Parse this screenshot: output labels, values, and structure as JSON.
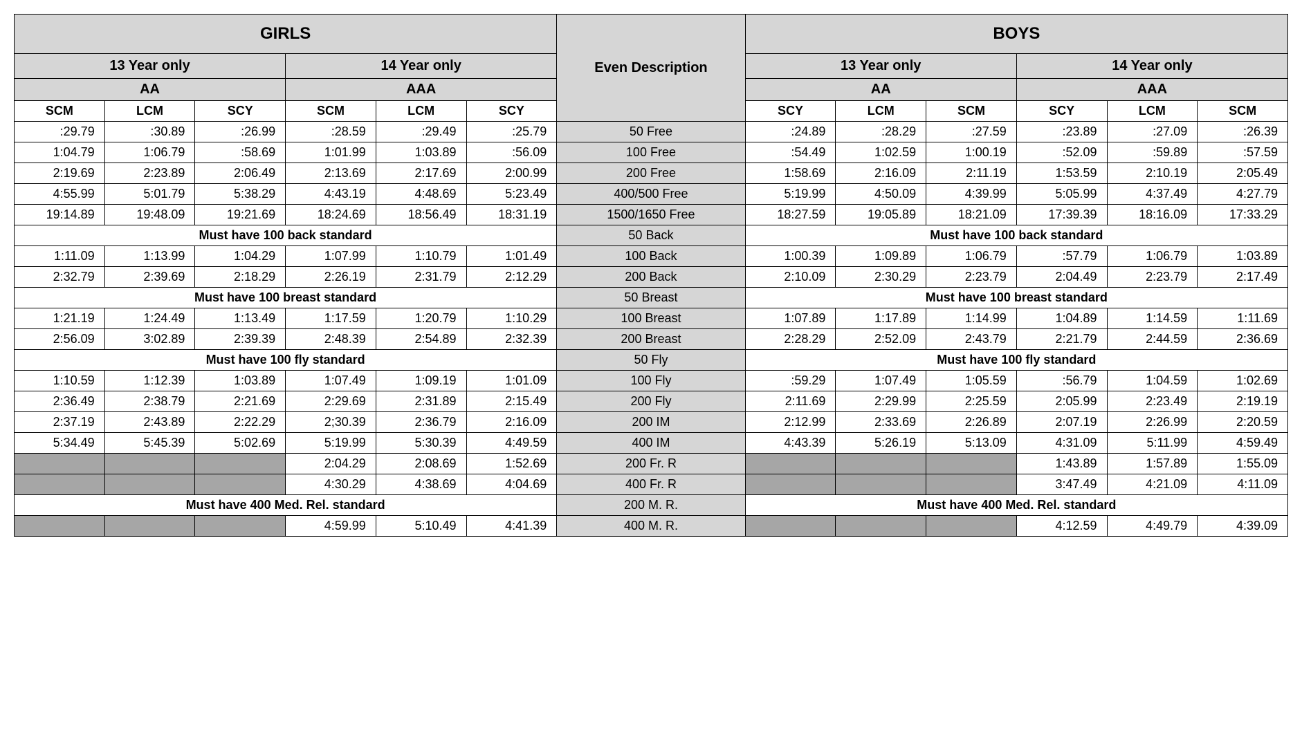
{
  "headers": {
    "girls": "GIRLS",
    "boys": "BOYS",
    "eventDesc": "Even Description",
    "y13": "13 Year only",
    "y14": "14 Year only",
    "aa": "AA",
    "aaa": "AAA",
    "scm": "SCM",
    "lcm": "LCM",
    "scy": "SCY"
  },
  "notes": {
    "back100": "Must have 100 back standard",
    "breast100": "Must have 100 breast standard",
    "fly100": "Must have 100 fly standard",
    "medrel400": "Must have 400 Med. Rel. standard"
  },
  "events": {
    "e50free": "50 Free",
    "e100free": "100 Free",
    "e200free": "200 Free",
    "e400free": "400/500 Free",
    "e1500free": "1500/1650 Free",
    "e50back": "50 Back",
    "e100back": "100 Back",
    "e200back": "200 Back",
    "e50breast": "50 Breast",
    "e100breast": "100 Breast",
    "e200breast": "200 Breast",
    "e50fly": "50 Fly",
    "e100fly": "100 Fly",
    "e200fly": "200 Fly",
    "e200im": "200 IM",
    "e400im": "400 IM",
    "e200frr": "200 Fr. R",
    "e400frr": "400 Fr. R",
    "e200mr": "200 M. R.",
    "e400mr": "400 M. R."
  },
  "rows": {
    "r50free": {
      "g": [
        ":29.79",
        ":30.89",
        ":26.99",
        ":28.59",
        ":29.49",
        ":25.79"
      ],
      "b": [
        ":24.89",
        ":28.29",
        ":27.59",
        ":23.89",
        ":27.09",
        ":26.39"
      ]
    },
    "r100free": {
      "g": [
        "1:04.79",
        "1:06.79",
        ":58.69",
        "1:01.99",
        "1:03.89",
        ":56.09"
      ],
      "b": [
        ":54.49",
        "1:02.59",
        "1:00.19",
        ":52.09",
        ":59.89",
        ":57.59"
      ]
    },
    "r200free": {
      "g": [
        "2:19.69",
        "2:23.89",
        "2:06.49",
        "2:13.69",
        "2:17.69",
        "2:00.99"
      ],
      "b": [
        "1:58.69",
        "2:16.09",
        "2:11.19",
        "1:53.59",
        "2:10.19",
        "2:05.49"
      ]
    },
    "r400free": {
      "g": [
        "4:55.99",
        "5:01.79",
        "5:38.29",
        "4:43.19",
        "4:48.69",
        "5:23.49"
      ],
      "b": [
        "5:19.99",
        "4:50.09",
        "4:39.99",
        "5:05.99",
        "4:37.49",
        "4:27.79"
      ]
    },
    "r1500free": {
      "g": [
        "19:14.89",
        "19:48.09",
        "19:21.69",
        "18:24.69",
        "18:56.49",
        "18:31.19"
      ],
      "b": [
        "18:27.59",
        "19:05.89",
        "18:21.09",
        "17:39.39",
        "18:16.09",
        "17:33.29"
      ]
    },
    "r100back": {
      "g": [
        "1:11.09",
        "1:13.99",
        "1:04.29",
        "1:07.99",
        "1:10.79",
        "1:01.49"
      ],
      "b": [
        "1:00.39",
        "1:09.89",
        "1:06.79",
        ":57.79",
        "1:06.79",
        "1:03.89"
      ]
    },
    "r200back": {
      "g": [
        "2:32.79",
        "2:39.69",
        "2:18.29",
        "2:26.19",
        "2:31.79",
        "2:12.29"
      ],
      "b": [
        "2:10.09",
        "2:30.29",
        "2:23.79",
        "2:04.49",
        "2:23.79",
        "2:17.49"
      ]
    },
    "r100breast": {
      "g": [
        "1:21.19",
        "1:24.49",
        "1:13.49",
        "1:17.59",
        "1:20.79",
        "1:10.29"
      ],
      "b": [
        "1:07.89",
        "1:17.89",
        "1:14.99",
        "1:04.89",
        "1:14.59",
        "1:11.69"
      ]
    },
    "r200breast": {
      "g": [
        "2:56.09",
        "3:02.89",
        "2:39.39",
        "2:48.39",
        "2:54.89",
        "2:32.39"
      ],
      "b": [
        "2:28.29",
        "2:52.09",
        "2:43.79",
        "2:21.79",
        "2:44.59",
        "2:36.69"
      ]
    },
    "r100fly": {
      "g": [
        "1:10.59",
        "1:12.39",
        "1:03.89",
        "1:07.49",
        "1:09.19",
        "1:01.09"
      ],
      "b": [
        ":59.29",
        "1:07.49",
        "1:05.59",
        ":56.79",
        "1:04.59",
        "1:02.69"
      ]
    },
    "r200fly": {
      "g": [
        "2:36.49",
        "2:38.79",
        "2:21.69",
        "2:29.69",
        "2:31.89",
        "2:15.49"
      ],
      "b": [
        "2:11.69",
        "2:29.99",
        "2:25.59",
        "2:05.99",
        "2:23.49",
        "2:19.19"
      ]
    },
    "r200im": {
      "g": [
        "2:37.19",
        "2:43.89",
        "2:22.29",
        "2;30.39",
        "2:36.79",
        "2:16.09"
      ],
      "b": [
        "2:12.99",
        "2:33.69",
        "2:26.89",
        "2:07.19",
        "2:26.99",
        "2:20.59"
      ]
    },
    "r400im": {
      "g": [
        "5:34.49",
        "5:45.39",
        "5:02.69",
        "5:19.99",
        "5:30.39",
        "4:49.59"
      ],
      "b": [
        "4:43.39",
        "5:26.19",
        "5:13.09",
        "4:31.09",
        "5:11.99",
        "4:59.49"
      ]
    },
    "r200frr": {
      "g14": [
        "2:04.29",
        "2:08.69",
        "1:52.69"
      ],
      "b14": [
        "1:43.89",
        "1:57.89",
        "1:55.09"
      ]
    },
    "r400frr": {
      "g14": [
        "4:30.29",
        "4:38.69",
        "4:04.69"
      ],
      "b14": [
        "3:47.49",
        "4:21.09",
        "4:11.09"
      ]
    },
    "r400mr": {
      "g14": [
        "4:59.99",
        "5:10.49",
        "4:41.39"
      ],
      "b14": [
        "4:12.59",
        "4:49.79",
        "4:39.09"
      ]
    }
  },
  "style": {
    "header_bg": "#d6d6d6",
    "dark_bg": "#a6a6a6",
    "border_color": "#000000",
    "font_family": "Arial",
    "big_fontsize": 24,
    "mid_fontsize": 20,
    "data_fontsize": 18
  }
}
